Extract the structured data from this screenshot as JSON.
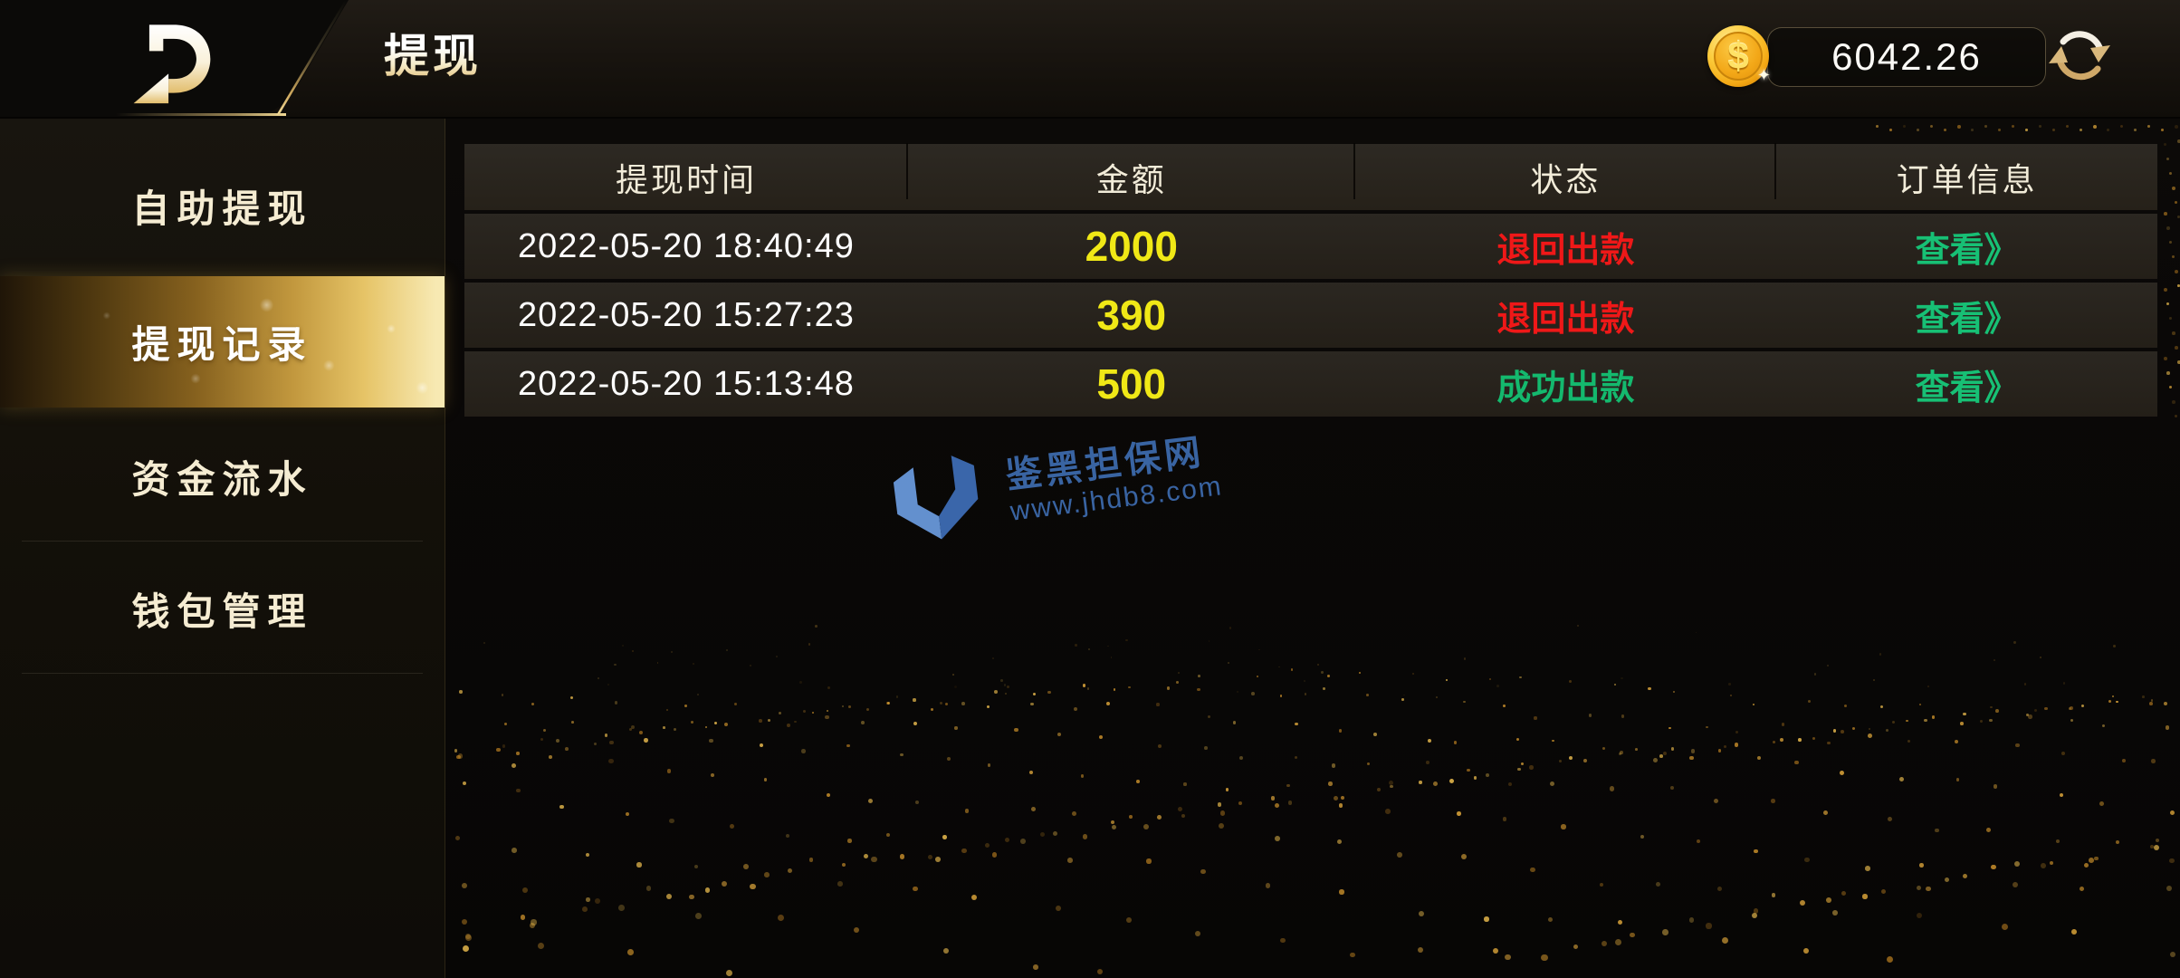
{
  "topbar": {
    "title": "提现",
    "balance": "6042.26",
    "coin_symbol": "$"
  },
  "sidebar": {
    "items": [
      {
        "label": "自助提现",
        "active": false
      },
      {
        "label": "提现记录",
        "active": true
      },
      {
        "label": "资金流水",
        "active": false
      },
      {
        "label": "钱包管理",
        "active": false
      }
    ]
  },
  "table": {
    "columns": [
      "提现时间",
      "金额",
      "状态",
      "订单信息"
    ],
    "rows": [
      {
        "time": "2022-05-20 18:40:49",
        "amount": "2000",
        "status": "退回出款",
        "status_type": "returned",
        "action": "查看》"
      },
      {
        "time": "2022-05-20 15:27:23",
        "amount": "390",
        "status": "退回出款",
        "status_type": "returned",
        "action": "查看》"
      },
      {
        "time": "2022-05-20 15:13:48",
        "amount": "500",
        "status": "成功出款",
        "status_type": "success",
        "action": "查看》"
      }
    ]
  },
  "watermark": {
    "site_name": "鉴黑担保网",
    "site_url": "www.jhdb8.com"
  },
  "colors": {
    "gold_accent": "#e8c05c",
    "amount_yellow": "#f0e816",
    "status_red": "#ef1818",
    "status_green": "#14b96e",
    "action_green": "#17c075",
    "watermark_blue": "#3e6cb0"
  }
}
